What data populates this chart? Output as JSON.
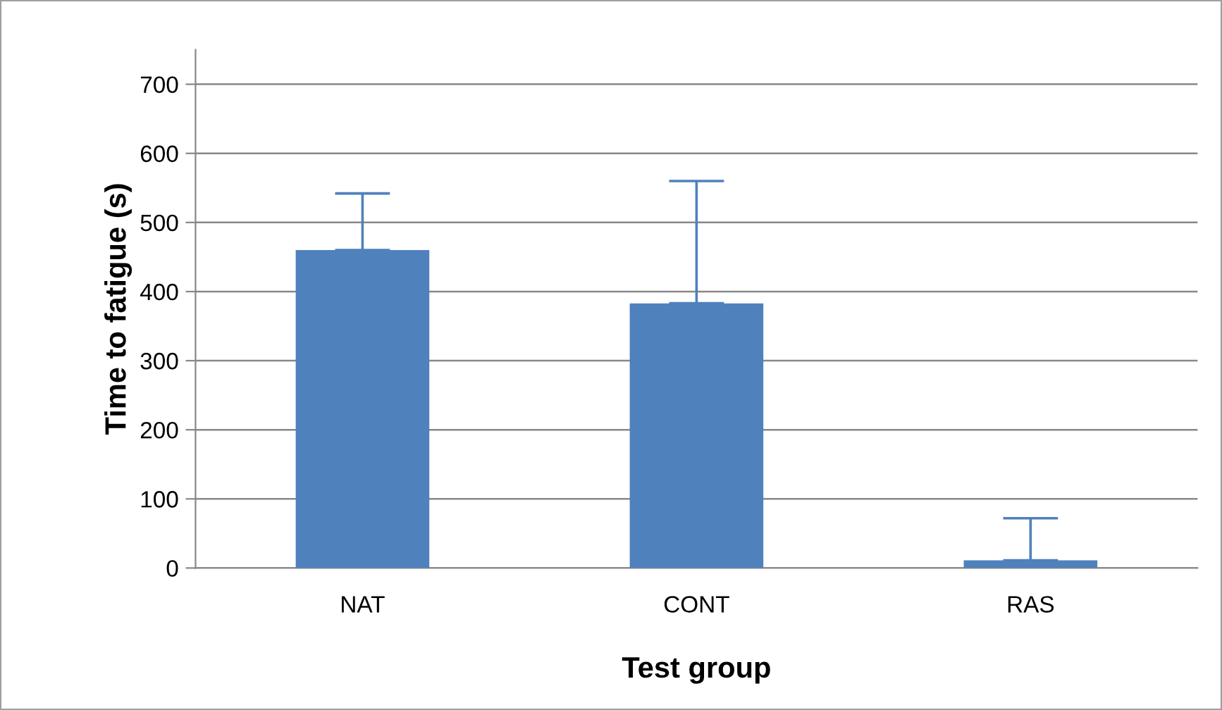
{
  "chart_data": {
    "type": "bar",
    "xlabel": "Test group",
    "ylabel": "Time to fatigue (s)",
    "categories": [
      "NAT",
      "CONT",
      "RAS"
    ],
    "values": [
      460,
      383,
      11
    ],
    "errors": [
      [
        460,
        542
      ],
      [
        383,
        560
      ],
      [
        11,
        72
      ]
    ],
    "color": "#4f81bd",
    "ylim": [
      0,
      750
    ],
    "yticks": [
      0,
      100,
      200,
      300,
      400,
      500,
      600,
      700
    ],
    "grid": "y",
    "legend": false
  }
}
